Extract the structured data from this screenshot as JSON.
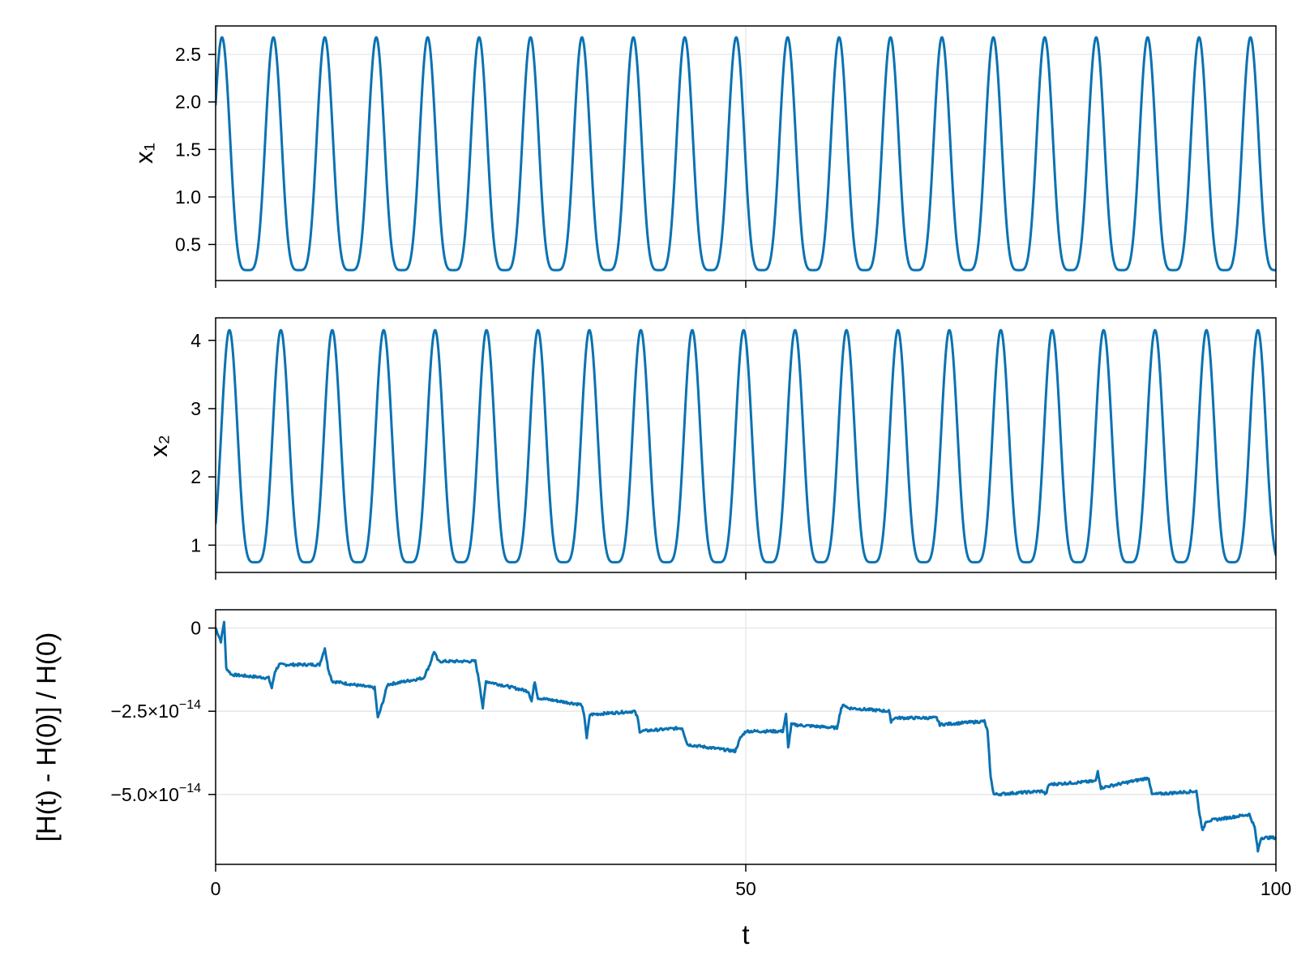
{
  "colors": {
    "series": "#0a72b2"
  },
  "chart_data": [
    {
      "type": "line",
      "name": "x1-panel",
      "ylabel": "x₁",
      "xlim": [
        0,
        100
      ],
      "ylim": [
        0.12,
        2.8
      ],
      "yticks": [
        0.5,
        1.0,
        1.5,
        2.0,
        2.5
      ],
      "ytick_labels": [
        "0.5",
        "1.0",
        "1.5",
        "2.0",
        "2.5"
      ],
      "xticks": [
        0,
        50,
        100
      ],
      "grid": true,
      "oscillation": {
        "period": 4.85,
        "peak": 2.68,
        "trough": 0.23,
        "start": 2.0,
        "peak_times_first": 0.6
      }
    },
    {
      "type": "line",
      "name": "x2-panel",
      "ylabel": "x₂",
      "xlim": [
        0,
        100
      ],
      "ylim": [
        0.6,
        4.33
      ],
      "yticks": [
        1,
        2,
        3,
        4
      ],
      "ytick_labels": [
        "1",
        "2",
        "3",
        "4"
      ],
      "xticks": [
        0,
        50,
        100
      ],
      "grid": true,
      "oscillation": {
        "period": 4.85,
        "peak": 4.15,
        "trough": 0.75,
        "start": 1.0,
        "peak_times_first": 1.3
      }
    },
    {
      "type": "line",
      "name": "energy-panel",
      "ylabel": "[H(t) - H(0)] / H(0)",
      "xlabel": "t",
      "xlim": [
        0,
        100
      ],
      "ylim": [
        -7.1e-14,
        5.5e-15
      ],
      "yticks": [
        0,
        -2.5e-14,
        -5e-14
      ],
      "ytick_labels": [
        {
          "base": "0",
          "exp": ""
        },
        {
          "base": "−2.5×10",
          "exp": "−14"
        },
        {
          "base": "−5.0×10",
          "exp": "−14"
        }
      ],
      "xticks": [
        0,
        50,
        100
      ],
      "xtick_labels": [
        "0",
        "50",
        "100"
      ],
      "grid": true,
      "points": [
        [
          0,
          0
        ],
        [
          0.5,
          -4e-15
        ],
        [
          0.8,
          2e-15
        ],
        [
          1.0,
          -1.2e-14
        ],
        [
          1.5,
          -1.4e-14
        ],
        [
          5,
          -1.5e-14
        ],
        [
          5.3,
          -1.8e-14
        ],
        [
          5.6,
          -1.3e-14
        ],
        [
          6,
          -1.1e-14
        ],
        [
          9.8,
          -1.1e-14
        ],
        [
          10.3,
          -6e-15
        ],
        [
          10.6,
          -1.2e-14
        ],
        [
          11,
          -1.6e-14
        ],
        [
          15,
          -1.8e-14
        ],
        [
          15.3,
          -2.7e-14
        ],
        [
          15.8,
          -2.2e-14
        ],
        [
          16.2,
          -1.7e-14
        ],
        [
          19.6,
          -1.5e-14
        ],
        [
          20.2,
          -1.1e-14
        ],
        [
          20.6,
          -7e-15
        ],
        [
          21,
          -1e-14
        ],
        [
          24.5,
          -1e-14
        ],
        [
          24.9,
          -1.7e-14
        ],
        [
          25.2,
          -2.4e-14
        ],
        [
          25.5,
          -1.6e-14
        ],
        [
          29.5,
          -1.9e-14
        ],
        [
          29.8,
          -2.2e-14
        ],
        [
          30.1,
          -1.6e-14
        ],
        [
          30.4,
          -2.1e-14
        ],
        [
          34.5,
          -2.3e-14
        ],
        [
          34.8,
          -2.7e-14
        ],
        [
          35.0,
          -3.3e-14
        ],
        [
          35.3,
          -2.6e-14
        ],
        [
          39.5,
          -2.5e-14
        ],
        [
          39.8,
          -2.7e-14
        ],
        [
          40.0,
          -3.1e-14
        ],
        [
          44,
          -3e-14
        ],
        [
          44.5,
          -3.5e-14
        ],
        [
          49,
          -3.7e-14
        ],
        [
          49.5,
          -3.3e-14
        ],
        [
          50,
          -3.1e-14
        ],
        [
          53.5,
          -3.1e-14
        ],
        [
          53.8,
          -2.6e-14
        ],
        [
          54.0,
          -3.6e-14
        ],
        [
          54.3,
          -2.9e-14
        ],
        [
          58.6,
          -3e-14
        ],
        [
          59.0,
          -2.4e-14
        ],
        [
          59.3,
          -2.3e-14
        ],
        [
          59.6,
          -2.4e-14
        ],
        [
          63.5,
          -2.5e-14
        ],
        [
          63.7,
          -2.8e-14
        ],
        [
          64.0,
          -2.7e-14
        ],
        [
          68.0,
          -2.7e-14
        ],
        [
          68.3,
          -2.9e-14
        ],
        [
          72.5,
          -2.8e-14
        ],
        [
          72.8,
          -3.1e-14
        ],
        [
          73.1,
          -4.5e-14
        ],
        [
          73.4,
          -5e-14
        ],
        [
          78.0,
          -4.9e-14
        ],
        [
          78.3,
          -5e-14
        ],
        [
          78.6,
          -4.7e-14
        ],
        [
          83.0,
          -4.6e-14
        ],
        [
          83.2,
          -4.3e-14
        ],
        [
          83.5,
          -4.8e-14
        ],
        [
          88.0,
          -4.5e-14
        ],
        [
          88.3,
          -5e-14
        ],
        [
          92.5,
          -4.9e-14
        ],
        [
          92.8,
          -5.6e-14
        ],
        [
          93.1,
          -6.1e-14
        ],
        [
          93.4,
          -5.8e-14
        ],
        [
          97.5,
          -5.6e-14
        ],
        [
          98.0,
          -6e-14
        ],
        [
          98.3,
          -6.7e-14
        ],
        [
          98.6,
          -6.3e-14
        ],
        [
          100,
          -6.3e-14
        ]
      ],
      "noise_amplitude": 8e-16
    }
  ]
}
